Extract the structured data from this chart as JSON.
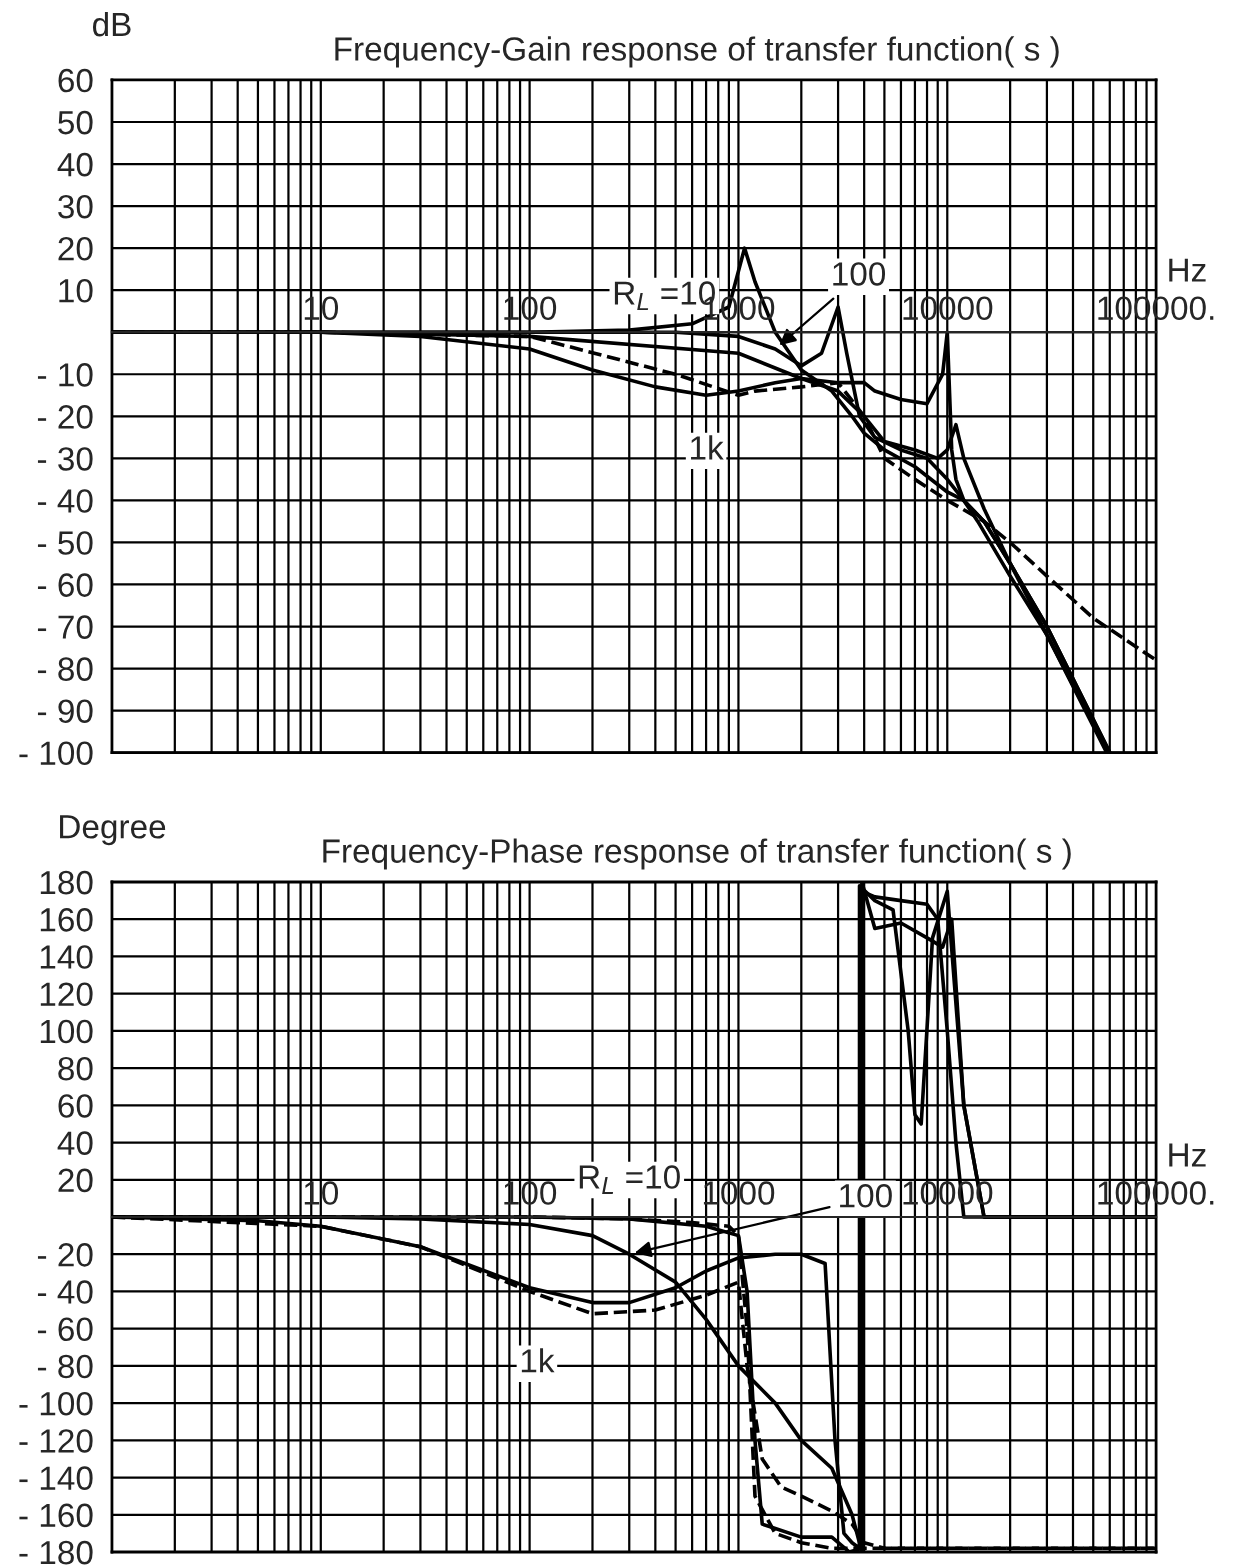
{
  "chart_data": [
    {
      "type": "line",
      "title": "Frequency-Gain response of transfer function( s )",
      "xlabel": "Hz",
      "ylabel": "dB",
      "log": "x",
      "grid": true,
      "xlim": [
        1,
        100000
      ],
      "xticks": [
        10,
        100,
        1000,
        10000,
        {
          "value": 100000,
          "label": "100000."
        }
      ],
      "ylim": [
        -100,
        60
      ],
      "yticks": [
        60,
        50,
        40,
        30,
        20,
        10,
        {
          "value": 0,
          "label": null
        },
        {
          "value": -10,
          "label": "- 10"
        },
        {
          "value": -20,
          "label": "- 20"
        },
        {
          "value": -30,
          "label": "- 30"
        },
        {
          "value": -40,
          "label": "- 40"
        },
        {
          "value": -50,
          "label": "- 50"
        },
        {
          "value": -60,
          "label": "- 60"
        },
        {
          "value": -70,
          "label": "- 70"
        },
        {
          "value": -80,
          "label": "- 80"
        },
        {
          "value": -90,
          "label": "- 90"
        },
        {
          "value": -100,
          "label": "- 100"
        }
      ],
      "annotations": [
        {
          "text": "R$_{L}$ =10",
          "x": 600,
          "y": 2
        },
        {
          "text": "100",
          "x": 1500,
          "y": -4
        },
        {
          "text": "1k",
          "x": 700,
          "y": -15
        }
      ],
      "series": [
        {
          "color": "#000000",
          "line_style": "solid",
          "x": [
            1,
            10,
            100,
            300,
            600,
            900,
            1070,
            1200,
            1500,
            2000,
            2800,
            3500,
            4000,
            5000,
            7000,
            10000,
            12000,
            15000,
            20000,
            30000,
            60000
          ],
          "values": [
            0,
            0,
            0,
            0.5,
            2,
            6,
            20,
            12,
            0,
            -9,
            -14,
            -20,
            -24,
            -28,
            -32,
            -38,
            -40,
            -45,
            -55,
            -70,
            -100
          ]
        },
        {
          "color": "#000000",
          "line_style": "solid",
          "x": [
            1,
            10,
            100,
            500,
            1000,
            1500,
            2000,
            2500,
            3000,
            3300,
            3800,
            4500,
            6000,
            8000,
            10000,
            12000,
            14000,
            20000,
            30000,
            58000
          ],
          "values": [
            0,
            0,
            0,
            0,
            -1,
            -4,
            -8,
            -5,
            6,
            -5,
            -20,
            -25,
            -28,
            -30,
            -35,
            -40,
            -45,
            -58,
            -72,
            -100
          ]
        },
        {
          "color": "#000000",
          "line_style": "solid",
          "x": [
            1,
            10,
            100,
            1000,
            2000,
            3000,
            4000,
            4500,
            6000,
            8000,
            9500,
            10000,
            10500,
            11000,
            12000,
            15000,
            20000,
            30000,
            60000
          ],
          "values": [
            0,
            0,
            -1,
            -5,
            -11,
            -12,
            -12,
            -14,
            -16,
            -17,
            -10,
            0,
            -28,
            -35,
            -40,
            -45,
            -55,
            -70,
            -100
          ]
        },
        {
          "color": "#000000",
          "line_style": "solid",
          "x": [
            1,
            10,
            30,
            100,
            200,
            400,
            700,
            1000,
            1500,
            2000,
            3000,
            4000,
            5000,
            7000,
            9000,
            10000,
            11000,
            12000,
            15000,
            20000,
            30000,
            59000
          ],
          "values": [
            0,
            0,
            -1,
            -4,
            -9,
            -13,
            -15,
            -14,
            -12,
            -11,
            -14,
            -20,
            -26,
            -28,
            -30,
            -28,
            -22,
            -30,
            -42,
            -55,
            -72,
            -100
          ]
        },
        {
          "color": "#000000",
          "line_style": "dashed",
          "x": [
            1,
            10,
            100,
            500,
            1000,
            1200,
            2000,
            3000,
            4000,
            5000,
            7000,
            10000,
            15000,
            20000,
            30000,
            50000,
            100000
          ],
          "values": [
            0,
            0,
            -1,
            -10,
            -15,
            -14,
            -13,
            -12,
            -20,
            -30,
            -35,
            -40,
            -45,
            -50,
            -58,
            -68,
            -78
          ]
        }
      ]
    },
    {
      "type": "line",
      "title": "Frequency-Phase response of transfer function( s )",
      "xlabel": "Hz",
      "ylabel": "Degree",
      "log": "x",
      "grid": true,
      "xlim": [
        1,
        100000
      ],
      "xticks": [
        10,
        100,
        1000,
        10000,
        {
          "value": 100000,
          "label": "100000."
        }
      ],
      "ylim": [
        -180,
        180
      ],
      "yticks": [
        180,
        160,
        140,
        120,
        100,
        80,
        60,
        40,
        20,
        {
          "value": 0,
          "label": null
        },
        {
          "value": -20,
          "label": "- 20"
        },
        {
          "value": -40,
          "label": "- 40"
        },
        {
          "value": -60,
          "label": "- 60"
        },
        {
          "value": -80,
          "label": "- 80"
        },
        {
          "value": -100,
          "label": "- 100"
        },
        {
          "value": -120,
          "label": "- 120"
        },
        {
          "value": -140,
          "label": "- 140"
        },
        {
          "value": -160,
          "label": "- 160"
        },
        {
          "value": -180,
          "label": "- 180"
        }
      ],
      "annotations": [
        {
          "text": "R$_{L}$ =10",
          "x": 300,
          "y": -1
        },
        {
          "text": "100",
          "x": 300,
          "y": -20
        },
        {
          "text": "1k",
          "x": 200,
          "y": -46
        }
      ],
      "series": [
        {
          "color": "#000000",
          "line_style": "solid",
          "x": [
            1,
            100,
            300,
            700,
            1000,
            1100,
            1200,
            1300,
            2000,
            2800,
            3400,
            3900,
            3900,
            4500,
            6000,
            8000,
            9000,
            10000,
            11000,
            12000,
            100000
          ],
          "values": [
            0,
            0,
            -1,
            -5,
            -10,
            -40,
            -120,
            -165,
            -172,
            -172,
            -180,
            -178,
            175,
            172,
            170,
            168,
            160,
            100,
            40,
            0,
            0
          ]
        },
        {
          "color": "#000000",
          "line_style": "solid",
          "x": [
            1,
            10,
            30,
            100,
            200,
            300,
            500,
            700,
            1000,
            1500,
            2000,
            2800,
            3500,
            3900,
            3900,
            4500,
            6000,
            8000,
            9500,
            10500,
            12000,
            15000,
            100000
          ],
          "values": [
            0,
            0,
            -1,
            -4,
            -10,
            -20,
            -35,
            -55,
            -80,
            -100,
            -120,
            -135,
            -160,
            -180,
            180,
            155,
            158,
            150,
            145,
            160,
            60,
            0,
            0
          ]
        },
        {
          "color": "#000000",
          "line_style": "solid",
          "x": [
            1,
            5,
            10,
            30,
            100,
            200,
            300,
            500,
            700,
            1000,
            1500,
            2000,
            2600,
            2900,
            3200,
            3500,
            3800,
            3800,
            4500,
            5500,
            6500,
            7000,
            7500,
            8500,
            10000,
            12000,
            15000,
            100000
          ],
          "values": [
            0,
            -2,
            -5,
            -16,
            -38,
            -46,
            -46,
            -38,
            -29,
            -22,
            -20,
            -20,
            -25,
            -120,
            -170,
            -175,
            -178,
            178,
            170,
            165,
            100,
            55,
            50,
            150,
            175,
            60,
            0,
            0
          ]
        },
        {
          "color": "#000000",
          "line_style": "dashed",
          "x": [
            1,
            10,
            30,
            100,
            200,
            400,
            700,
            1000,
            1100,
            1300,
            1600,
            2000,
            2800,
            3500,
            4000,
            5000,
            100000
          ],
          "values": [
            0,
            -5,
            -16,
            -40,
            -52,
            -50,
            -42,
            -35,
            -80,
            -130,
            -145,
            -150,
            -158,
            -165,
            -175,
            -178,
            -178
          ]
        },
        {
          "color": "#000000",
          "line_style": "dashed",
          "x": [
            1,
            100,
            300,
            600,
            900,
            1000,
            1100,
            1200,
            1500,
            2000,
            2800,
            3500,
            100000
          ],
          "values": [
            0,
            0,
            -1,
            -3,
            -5,
            -10,
            -60,
            -150,
            -170,
            -175,
            -178,
            -178,
            -178
          ]
        }
      ]
    }
  ]
}
